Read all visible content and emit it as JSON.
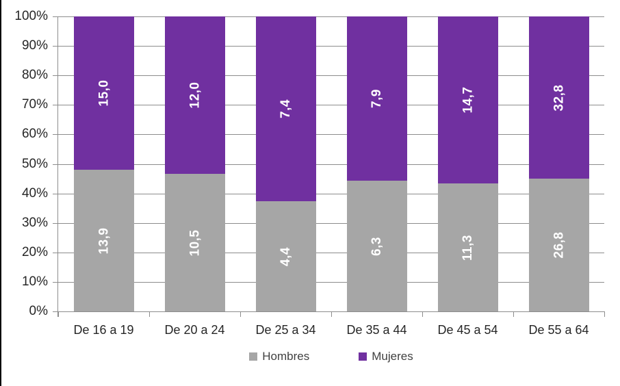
{
  "chart_data": {
    "type": "bar",
    "stacked": true,
    "percent_stacked": true,
    "categories": [
      "De 16 a 19",
      "De 20 a 24",
      "De 25 a 34",
      "De 35 a 44",
      "De 45 a 54",
      "De 55 a 64"
    ],
    "series": [
      {
        "name": "Hombres",
        "color": "#A6A6A6",
        "values": [
          13.9,
          10.5,
          4.4,
          6.3,
          11.3,
          26.8
        ],
        "labels": [
          "13,9",
          "10,5",
          "4,4",
          "6,3",
          "11,3",
          "26,8"
        ]
      },
      {
        "name": "Mujeres",
        "color": "#7030A0",
        "values": [
          15.0,
          12.0,
          7.4,
          7.9,
          14.7,
          32.8
        ],
        "labels": [
          "15,0",
          "12,0",
          "7,4",
          "7,9",
          "14,7",
          "32,8"
        ]
      }
    ],
    "y_ticks": [
      "0%",
      "10%",
      "20%",
      "30%",
      "40%",
      "50%",
      "60%",
      "70%",
      "80%",
      "90%",
      "100%"
    ],
    "ylim": [
      0,
      100
    ],
    "grid": true,
    "legend_position": "bottom",
    "data_label_color": "#FFFFFF",
    "axis_color": "#8C8C8C",
    "tick_label_color": "#262626",
    "legend_text_color": "#404040"
  }
}
